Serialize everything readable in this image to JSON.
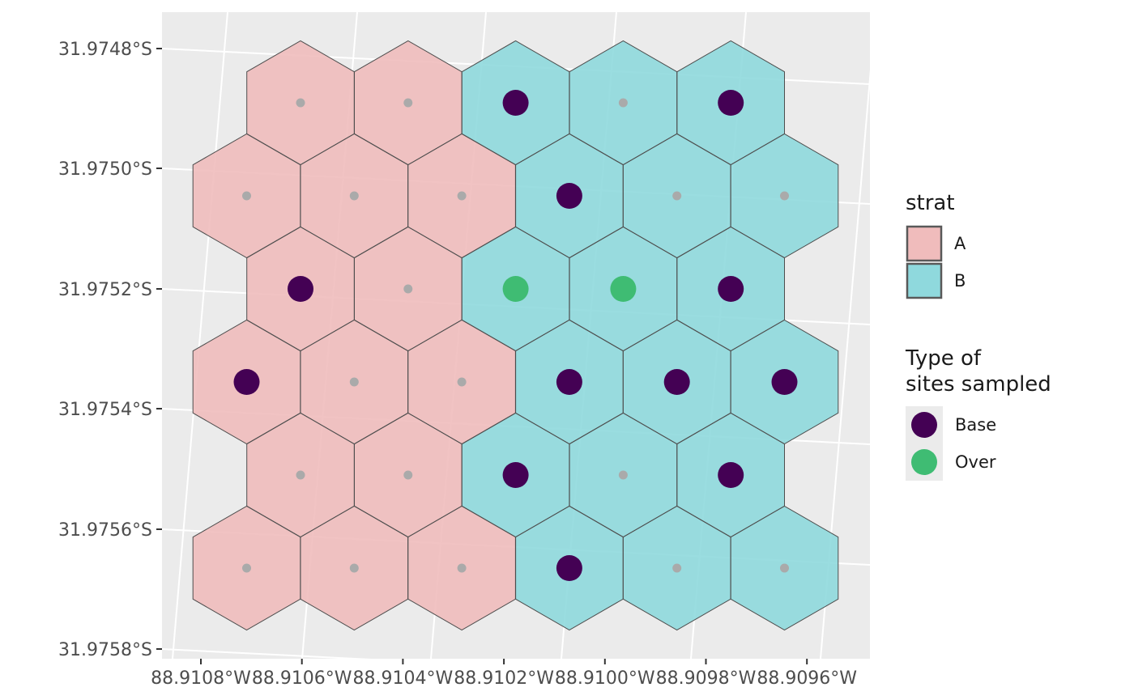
{
  "chart_data": {
    "type": "map",
    "x_ticks": [
      "88.9108°W",
      "88.9106°W",
      "88.9104°W",
      "88.9102°W",
      "88.9100°W",
      "88.9098°W",
      "88.9096°W"
    ],
    "y_ticks": [
      "31.9748°S",
      "31.9750°S",
      "31.9752°S",
      "31.9754°S",
      "31.9756°S",
      "31.9758°S"
    ],
    "strata": [
      {
        "label": "A",
        "color": "#F0BCBC"
      },
      {
        "label": "B",
        "color": "#8FD9DD"
      }
    ],
    "site_types": [
      {
        "label": "Base",
        "color": "#440154"
      },
      {
        "label": "Over",
        "color": "#3FBC73"
      }
    ],
    "grid": [
      [
        "A",
        "A",
        "B",
        "B",
        "B"
      ],
      [
        "A",
        "A",
        "A",
        "B",
        "B",
        "B"
      ],
      [
        "A",
        "A",
        "B",
        "B",
        "B"
      ],
      [
        "A",
        "A",
        "A",
        "B",
        "B",
        "B"
      ],
      [
        "A",
        "A",
        "B",
        "B",
        "B"
      ],
      [
        "A",
        "A",
        "A",
        "B",
        "B",
        "B"
      ]
    ],
    "sites": [
      [
        "",
        "",
        "Base",
        "",
        "Base"
      ],
      [
        "",
        "",
        "",
        "Base",
        "",
        ""
      ],
      [
        "Base",
        "",
        "Over",
        "Over",
        "Base"
      ],
      [
        "Base",
        "",
        "",
        "Base",
        "Base",
        "Base"
      ],
      [
        "",
        "",
        "Base",
        "",
        "Base"
      ],
      [
        "",
        "",
        "",
        "Base",
        "",
        ""
      ]
    ]
  },
  "legend": {
    "strat_title": "strat",
    "type_title_line1": "Type of",
    "type_title_line2": "sites sampled"
  },
  "colors": {
    "panel_bg": "#EBEBEB",
    "grid_line": "#FFFFFF",
    "hex_stroke": "#4D4D4D",
    "unsampled_point": "#AAAAAA"
  }
}
